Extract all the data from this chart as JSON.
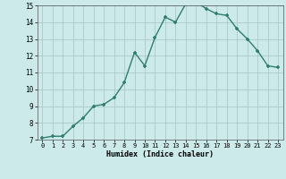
{
  "x": [
    0,
    1,
    2,
    3,
    4,
    5,
    6,
    7,
    8,
    9,
    10,
    11,
    12,
    13,
    14,
    15,
    16,
    17,
    18,
    19,
    20,
    21,
    22,
    23
  ],
  "y": [
    7.1,
    7.2,
    7.2,
    7.8,
    8.3,
    9.0,
    9.1,
    9.5,
    10.4,
    12.2,
    11.4,
    13.1,
    14.3,
    14.0,
    15.1,
    15.2,
    14.8,
    14.5,
    14.4,
    13.6,
    13.0,
    12.3,
    11.4,
    11.3
  ],
  "xlabel": "Humidex (Indice chaleur)",
  "ylim": [
    7,
    15
  ],
  "xlim": [
    -0.5,
    23.5
  ],
  "yticks": [
    7,
    8,
    9,
    10,
    11,
    12,
    13,
    14,
    15
  ],
  "xticks": [
    0,
    1,
    2,
    3,
    4,
    5,
    6,
    7,
    8,
    9,
    10,
    11,
    12,
    13,
    14,
    15,
    16,
    17,
    18,
    19,
    20,
    21,
    22,
    23
  ],
  "line_color": "#2e7d6e",
  "marker_color": "#2e7d6e",
  "bg_color": "#cdeaea",
  "grid_color": "#b0cecd"
}
